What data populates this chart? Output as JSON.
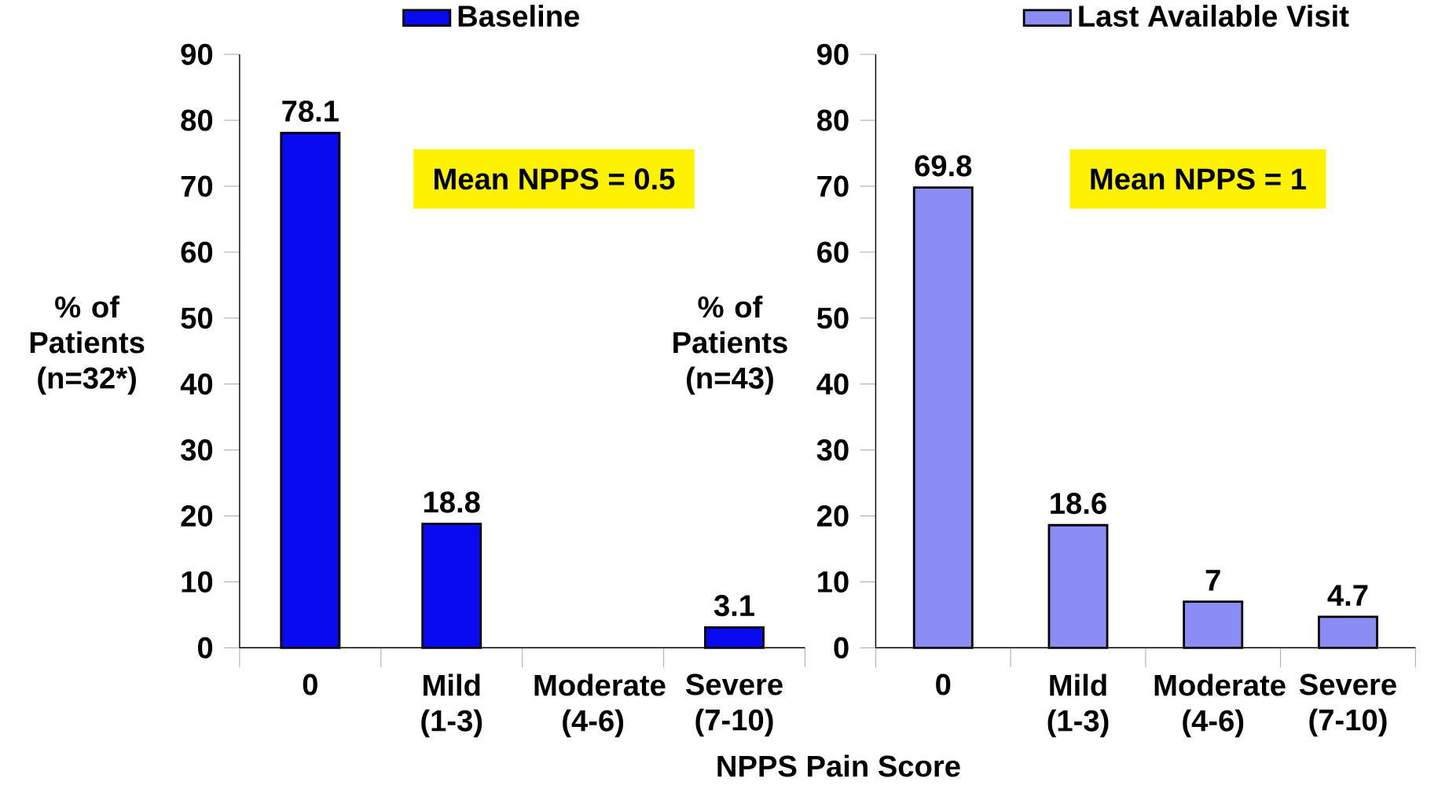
{
  "chart_data": [
    {
      "type": "bar",
      "categories": [
        "0",
        "Mild (1-3)",
        "Moderate (4-6)",
        "Severe (7-10)"
      ],
      "series": [
        {
          "name": "Baseline",
          "color": "#0a0af0",
          "values": [
            78.1,
            18.8,
            null,
            3.1
          ],
          "value_labels": [
            "78.1",
            "18.8",
            null,
            "3.1"
          ]
        }
      ],
      "ylim": [
        0,
        90
      ],
      "yticks": [
        0,
        10,
        20,
        30,
        40,
        50,
        60,
        70,
        80,
        90
      ],
      "ylabel": "% of Patients (n=32*)",
      "xlabel": "NPPS Pain Score",
      "annotations": [
        "Mean NPPS = 0.5"
      ],
      "legend": "top"
    },
    {
      "type": "bar",
      "categories": [
        "0",
        "Mild (1-3)",
        "Moderate (4-6)",
        "Severe (7-10)"
      ],
      "series": [
        {
          "name": "Last Available Visit",
          "color": "#8c8cf5",
          "values": [
            69.8,
            18.6,
            7,
            4.7
          ],
          "value_labels": [
            "69.8",
            "18.6",
            "7",
            "4.7"
          ]
        }
      ],
      "ylim": [
        0,
        90
      ],
      "yticks": [
        0,
        10,
        20,
        30,
        40,
        50,
        60,
        70,
        80,
        90
      ],
      "ylabel": "% of Patients (n=43)",
      "annotations": [
        "Mean NPPS = 1"
      ],
      "legend": "top"
    }
  ]
}
